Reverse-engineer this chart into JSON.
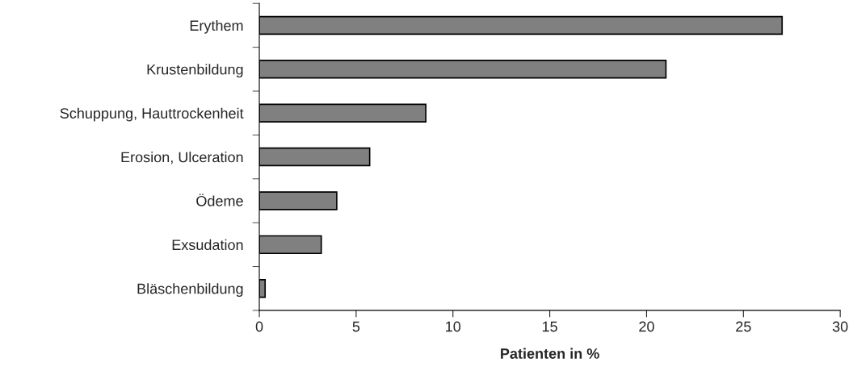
{
  "chart_data": {
    "type": "bar",
    "orientation": "horizontal",
    "xlabel": "Patienten in %",
    "categories": [
      "Erythem",
      "Krustenbildung",
      "Schuppung, Hauttrockenheit",
      "Erosion, Ulceration",
      "Ödeme",
      "Exsudation",
      "Bläschenbildung"
    ],
    "values": [
      27,
      21,
      8.6,
      5.7,
      4.0,
      3.2,
      0.3
    ],
    "color": "#808080",
    "xlim": [
      0,
      30
    ],
    "xticks": [
      0,
      5,
      10,
      15,
      20,
      25,
      30
    ],
    "grid": false
  }
}
